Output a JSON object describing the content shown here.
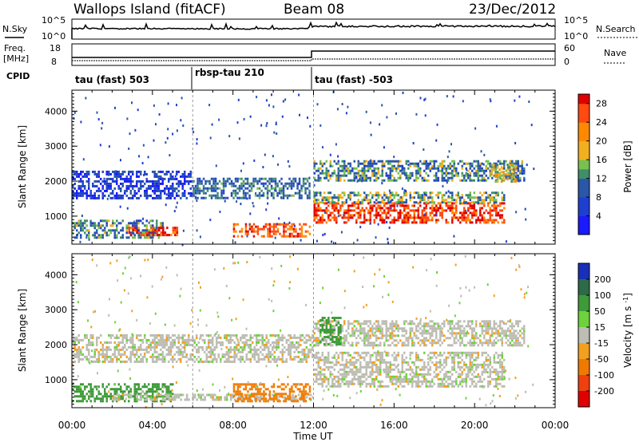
{
  "header": {
    "station": "Wallops Island (fitACF)",
    "beam": "Beam 08",
    "date": "23/Dec/2012"
  },
  "strips": {
    "nsky_label": "N.Sky",
    "nsky_ticks": [
      "10^5",
      "10^0"
    ],
    "nsearch_label": "N.Search",
    "nsearch_ticks": [
      "10^5",
      "10^0"
    ],
    "freq_label_1": "Freq.",
    "freq_label_2": "[MHz]",
    "freq_ticks": [
      "18",
      "8"
    ],
    "nave_label": "Nave",
    "nave_ticks": [
      "60",
      "0"
    ],
    "cpid_label": "CPID",
    "cpid_segments": [
      {
        "label": "tau (fast) 503",
        "start_hour": 0
      },
      {
        "label": "rbsp-tau 210",
        "start_hour": 6
      },
      {
        "label": "tau (fast) -503",
        "start_hour": 12
      }
    ]
  },
  "chart_data": [
    {
      "type": "heatmap",
      "title": "",
      "xlabel": "",
      "ylabel": "Slant Range [km]",
      "xlim": [
        0,
        24
      ],
      "ylim": [
        200,
        4600
      ],
      "yticks": [
        "1000",
        "2000",
        "3000",
        "4000"
      ],
      "colorbar": {
        "label": "Power [dB]",
        "ticks": [
          "4",
          "8",
          "12",
          "16",
          "20",
          "24",
          "28"
        ],
        "range": [
          0,
          30
        ]
      },
      "bands": [
        {
          "t0": 0,
          "t1": 4.5,
          "r0": 400,
          "r1": 900,
          "value": 12
        },
        {
          "t0": 2.8,
          "t1": 5.2,
          "r0": 450,
          "r1": 700,
          "value": 27
        },
        {
          "t0": 0,
          "t1": 6,
          "r0": 1500,
          "r1": 2300,
          "value": 6
        },
        {
          "t0": 6,
          "t1": 11.8,
          "r0": 1500,
          "r1": 2100,
          "value": 10
        },
        {
          "t0": 8,
          "t1": 11.8,
          "r0": 400,
          "r1": 800,
          "value": 25
        },
        {
          "t0": 12,
          "t1": 21.5,
          "r0": 800,
          "r1": 1400,
          "value": 27
        },
        {
          "t0": 12,
          "t1": 21.5,
          "r0": 1400,
          "r1": 1700,
          "value": 14
        },
        {
          "t0": 12,
          "t1": 22.5,
          "r0": 2000,
          "r1": 2600,
          "value": 12
        },
        {
          "t0": 20.8,
          "t1": 22,
          "r0": 2000,
          "r1": 2500,
          "value": 18
        }
      ]
    },
    {
      "type": "heatmap",
      "title": "",
      "xlabel": "Time UT",
      "ylabel": "Slant Range [km]",
      "xlim": [
        0,
        24
      ],
      "ylim": [
        200,
        4600
      ],
      "yticks": [
        "1000",
        "2000",
        "3000",
        "4000"
      ],
      "xticks": [
        "00:00",
        "04:00",
        "08:00",
        "12:00",
        "16:00",
        "20:00",
        "00:00"
      ],
      "colorbar": {
        "label": "Velocity [m s^-1]",
        "ticks": [
          "200",
          "100",
          "50",
          "15",
          "-15",
          "-50",
          "-100",
          "-200"
        ]
      },
      "bands": [
        {
          "t0": 0,
          "t1": 5,
          "r0": 400,
          "r1": 900,
          "value": 50
        },
        {
          "t0": 2,
          "t1": 12,
          "r0": 400,
          "r1": 600,
          "value": 0
        },
        {
          "t0": 8,
          "t1": 11.8,
          "r0": 400,
          "r1": 900,
          "value": -50
        },
        {
          "t0": 0,
          "t1": 12,
          "r0": 1500,
          "r1": 2300,
          "value": 0
        },
        {
          "t0": 12,
          "t1": 21.5,
          "r0": 800,
          "r1": 1800,
          "value": 0
        },
        {
          "t0": 12,
          "t1": 22.5,
          "r0": 2000,
          "r1": 2700,
          "value": 0
        },
        {
          "t0": 12.3,
          "t1": 13.3,
          "r0": 2000,
          "r1": 2800,
          "value": 50
        }
      ]
    }
  ]
}
